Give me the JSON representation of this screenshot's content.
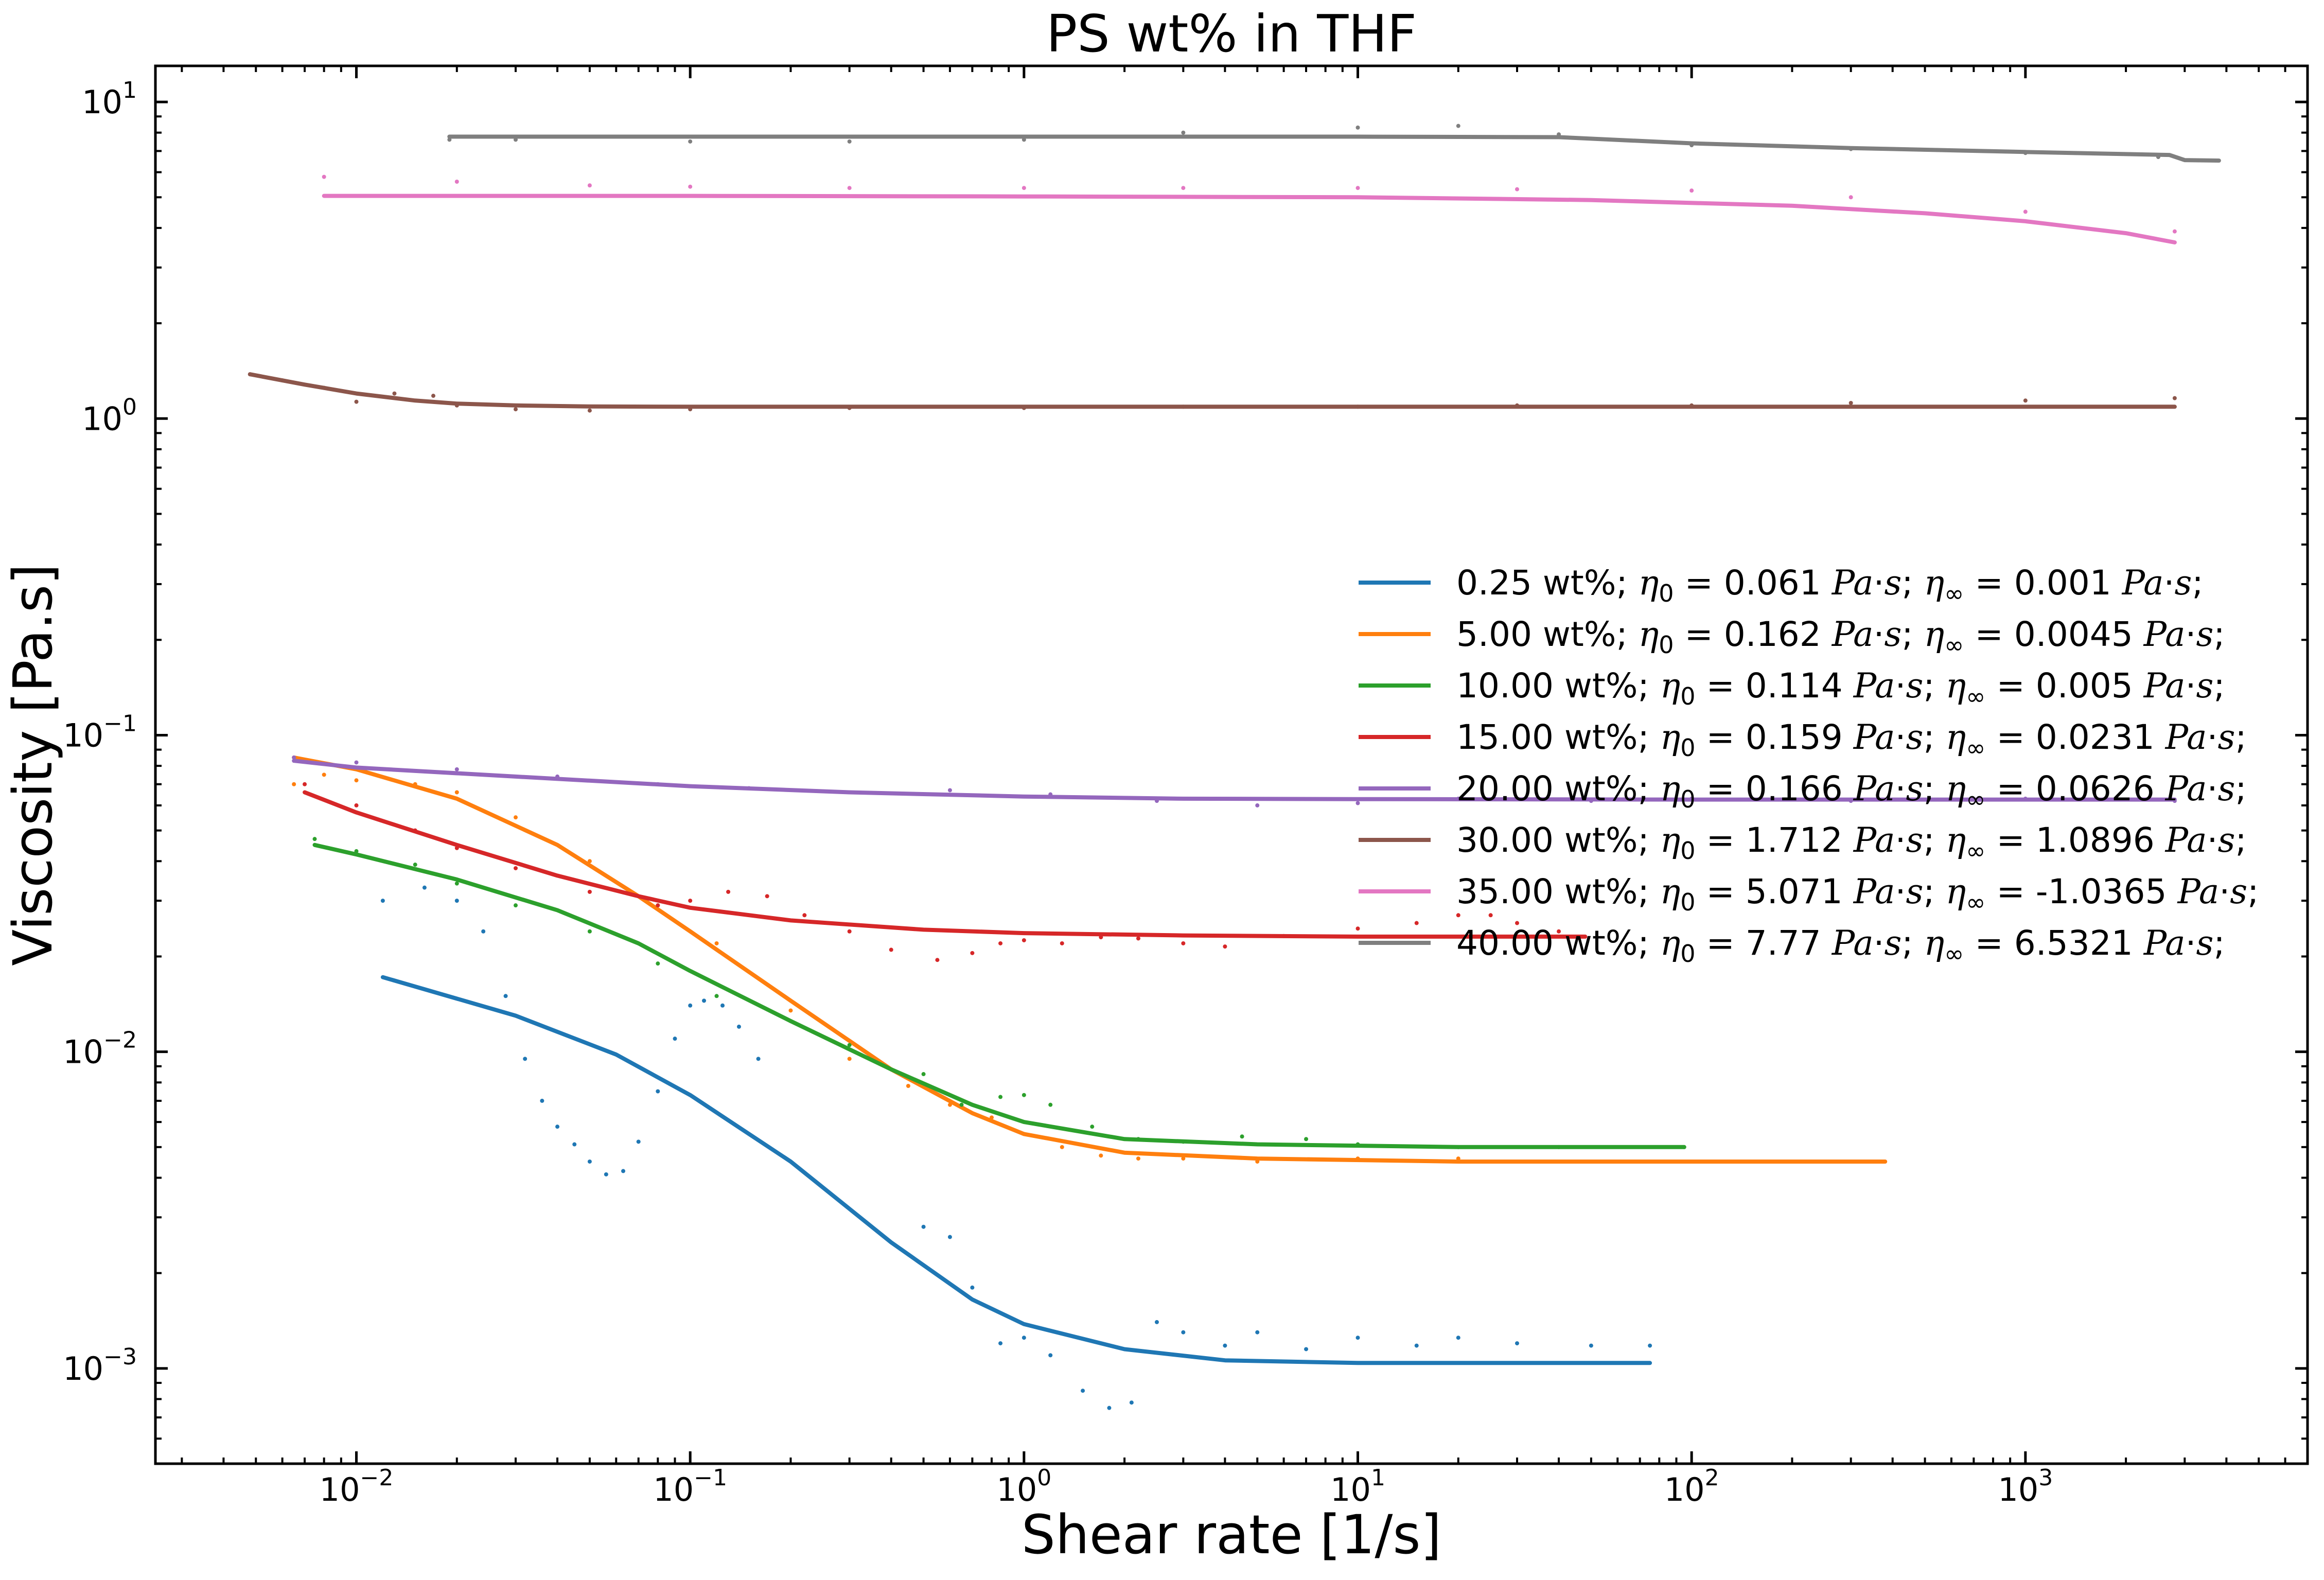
{
  "chart_data": {
    "type": "line",
    "title": "PS wt% in THF",
    "xlabel": "Shear rate [1/s]",
    "ylabel": "Viscosity [Pa.s]",
    "xscale": "log",
    "yscale": "log",
    "xlim": [
      0.0025,
      7000
    ],
    "ylim": [
      0.0005,
      13
    ],
    "x_ticks": [
      {
        "value": 0.01,
        "base": "10",
        "exp": "−2"
      },
      {
        "value": 0.1,
        "base": "10",
        "exp": "−1"
      },
      {
        "value": 1,
        "base": "10",
        "exp": "0"
      },
      {
        "value": 10,
        "base": "10",
        "exp": "1"
      },
      {
        "value": 100,
        "base": "10",
        "exp": "2"
      },
      {
        "value": 1000,
        "base": "10",
        "exp": "3"
      }
    ],
    "y_ticks": [
      {
        "value": 0.001,
        "base": "10",
        "exp": "−3"
      },
      {
        "value": 0.01,
        "base": "10",
        "exp": "−2"
      },
      {
        "value": 0.1,
        "base": "10",
        "exp": "−1"
      },
      {
        "value": 1,
        "base": "10",
        "exp": "0"
      },
      {
        "value": 10,
        "base": "10",
        "exp": "1"
      }
    ],
    "grid": false,
    "legend_position": "center-right",
    "series": [
      {
        "name": "0.25 wt%; η0 = 0.061 Pa·s; η∞ = 0.001 Pa·s;",
        "legend": {
          "conc": "0.25 wt%; ",
          "eta0": "0.061",
          "etainf": "0.001"
        },
        "color": "#1f77b4",
        "fit": {
          "x": [
            0.012,
            0.03,
            0.06,
            0.1,
            0.2,
            0.4,
            0.7,
            1.0,
            2.0,
            4.0,
            10,
            30,
            75
          ],
          "y": [
            0.0172,
            0.013,
            0.0098,
            0.0073,
            0.0045,
            0.0025,
            0.00165,
            0.00138,
            0.00115,
            0.00106,
            0.00104,
            0.00104,
            0.00104
          ]
        },
        "measured": {
          "x": [
            0.012,
            0.016,
            0.02,
            0.024,
            0.028,
            0.032,
            0.036,
            0.04,
            0.045,
            0.05,
            0.056,
            0.063,
            0.07,
            0.08,
            0.09,
            0.1,
            0.11,
            0.125,
            0.14,
            0.16,
            0.5,
            0.6,
            0.7,
            0.85,
            1.0,
            1.2,
            1.5,
            1.8,
            2.1,
            2.5,
            3.0,
            4.0,
            5.0,
            7.0,
            10,
            15,
            20,
            30,
            50,
            75
          ],
          "y": [
            0.03,
            0.033,
            0.03,
            0.024,
            0.015,
            0.0095,
            0.007,
            0.0058,
            0.0051,
            0.0045,
            0.0041,
            0.0042,
            0.0052,
            0.0075,
            0.011,
            0.014,
            0.0145,
            0.014,
            0.012,
            0.0095,
            0.0028,
            0.0026,
            0.0018,
            0.0012,
            0.00125,
            0.0011,
            0.00085,
            0.00075,
            0.00078,
            0.0014,
            0.0013,
            0.00118,
            0.0013,
            0.00115,
            0.00125,
            0.00118,
            0.00125,
            0.0012,
            0.00118,
            0.00118
          ]
        }
      },
      {
        "name": "5.00 wt%; η0 = 0.162 Pa·s; η∞ = 0.0045 Pa·s;",
        "legend": {
          "conc": "5.00 wt%; ",
          "eta0": "0.162",
          "etainf": "0.0045"
        },
        "color": "#ff7f0e",
        "fit": {
          "x": [
            0.0065,
            0.01,
            0.02,
            0.04,
            0.07,
            0.1,
            0.2,
            0.4,
            0.7,
            1.0,
            2.0,
            5.0,
            20,
            100,
            380
          ],
          "y": [
            0.085,
            0.078,
            0.063,
            0.045,
            0.031,
            0.024,
            0.0145,
            0.0088,
            0.0064,
            0.0055,
            0.0048,
            0.0046,
            0.0045,
            0.0045,
            0.0045
          ]
        },
        "measured": {
          "x": [
            0.0065,
            0.008,
            0.01,
            0.015,
            0.02,
            0.03,
            0.05,
            0.08,
            0.12,
            0.2,
            0.3,
            0.45,
            0.6,
            0.8,
            1.0,
            1.3,
            1.7,
            2.2,
            3.0,
            5.0,
            10,
            20,
            40,
            80,
            150
          ],
          "y": [
            0.07,
            0.075,
            0.072,
            0.07,
            0.066,
            0.055,
            0.04,
            0.029,
            0.022,
            0.0135,
            0.0095,
            0.0078,
            0.0068,
            0.0062,
            0.0055,
            0.005,
            0.0047,
            0.0046,
            0.0046,
            0.0045,
            0.0046,
            0.0046,
            0.0045,
            0.0045,
            0.0045
          ]
        }
      },
      {
        "name": "10.00 wt%; η0 = 0.114 Pa·s; η∞ = 0.005 Pa·s;",
        "legend": {
          "conc": "10.00 wt%; ",
          "eta0": "0.114",
          "etainf": "0.005"
        },
        "color": "#2ca02c",
        "fit": {
          "x": [
            0.0075,
            0.01,
            0.02,
            0.04,
            0.07,
            0.1,
            0.2,
            0.4,
            0.7,
            1.0,
            2.0,
            5.0,
            20,
            95
          ],
          "y": [
            0.045,
            0.042,
            0.035,
            0.028,
            0.022,
            0.018,
            0.0125,
            0.0088,
            0.0068,
            0.006,
            0.0053,
            0.0051,
            0.005,
            0.005
          ]
        },
        "measured": {
          "x": [
            0.0075,
            0.01,
            0.015,
            0.02,
            0.03,
            0.05,
            0.08,
            0.12,
            0.2,
            0.3,
            0.5,
            0.65,
            0.85,
            1.0,
            1.2,
            1.6,
            2.2,
            3.0,
            4.5,
            7.0,
            10,
            20,
            40,
            95
          ],
          "y": [
            0.047,
            0.043,
            0.039,
            0.034,
            0.029,
            0.024,
            0.019,
            0.015,
            0.0125,
            0.0105,
            0.0085,
            0.0068,
            0.0072,
            0.0073,
            0.0068,
            0.0058,
            0.0053,
            0.0052,
            0.0054,
            0.0053,
            0.0051,
            0.005,
            0.005,
            0.005
          ]
        }
      },
      {
        "name": "15.00 wt%; η0 = 0.159 Pa·s; η∞ = 0.0231 Pa·s;",
        "legend": {
          "conc": "15.00 wt%; ",
          "eta0": "0.159",
          "etainf": "0.0231"
        },
        "color": "#d62728",
        "fit": {
          "x": [
            0.007,
            0.01,
            0.02,
            0.04,
            0.07,
            0.1,
            0.2,
            0.5,
            1.0,
            3.0,
            10,
            48
          ],
          "y": [
            0.066,
            0.057,
            0.045,
            0.036,
            0.031,
            0.0285,
            0.026,
            0.0243,
            0.0237,
            0.0233,
            0.0231,
            0.0231
          ]
        },
        "measured": {
          "x": [
            0.007,
            0.01,
            0.015,
            0.02,
            0.03,
            0.05,
            0.08,
            0.1,
            0.13,
            0.17,
            0.22,
            0.3,
            0.4,
            0.55,
            0.7,
            0.85,
            1.0,
            1.3,
            1.7,
            2.2,
            3.0,
            4.0,
            6.0,
            10,
            15,
            20,
            25,
            30,
            40
          ],
          "y": [
            0.07,
            0.06,
            0.05,
            0.044,
            0.038,
            0.032,
            0.029,
            0.03,
            0.032,
            0.031,
            0.027,
            0.024,
            0.021,
            0.0195,
            0.0205,
            0.022,
            0.0225,
            0.022,
            0.023,
            0.0228,
            0.022,
            0.0215,
            0.0232,
            0.0245,
            0.0255,
            0.027,
            0.027,
            0.0255,
            0.024
          ]
        }
      },
      {
        "name": "20.00 wt%; η0 = 0.166 Pa·s; η∞ = 0.0626 Pa·s;",
        "legend": {
          "conc": "20.00 wt%; ",
          "eta0": "0.166",
          "etainf": "0.0626"
        },
        "color": "#9467bd",
        "fit": {
          "x": [
            0.0065,
            0.01,
            0.03,
            0.1,
            0.3,
            1.0,
            3.0,
            10,
            100,
            1000,
            2800
          ],
          "y": [
            0.083,
            0.079,
            0.074,
            0.069,
            0.066,
            0.064,
            0.063,
            0.0628,
            0.0626,
            0.0626,
            0.0626
          ]
        },
        "measured": {
          "x": [
            0.0065,
            0.01,
            0.02,
            0.04,
            0.08,
            0.15,
            0.3,
            0.6,
            1.2,
            2.5,
            5.0,
            10,
            20,
            50,
            100,
            300,
            1000,
            2800
          ],
          "y": [
            0.085,
            0.082,
            0.078,
            0.074,
            0.07,
            0.068,
            0.066,
            0.067,
            0.065,
            0.062,
            0.06,
            0.061,
            0.063,
            0.062,
            0.063,
            0.062,
            0.063,
            0.062
          ]
        }
      },
      {
        "name": "30.00 wt%; η0 = 1.712 Pa·s; η∞ = 1.0896 Pa·s;",
        "legend": {
          "conc": "30.00 wt%; ",
          "eta0": "1.712",
          "etainf": "1.0896"
        },
        "color": "#8c564b",
        "fit": {
          "x": [
            0.0048,
            0.007,
            0.01,
            0.015,
            0.02,
            0.03,
            0.05,
            0.1,
            1.0,
            10,
            100,
            1000,
            2800
          ],
          "y": [
            1.38,
            1.28,
            1.2,
            1.14,
            1.115,
            1.1,
            1.092,
            1.09,
            1.09,
            1.09,
            1.09,
            1.09,
            1.09
          ]
        },
        "measured": {
          "x": [
            0.0048,
            0.006,
            0.008,
            0.01,
            0.013,
            0.017,
            0.02,
            0.03,
            0.05,
            0.1,
            0.3,
            1.0,
            3.0,
            10,
            30,
            100,
            300,
            1000,
            2800
          ],
          "y": [
            1.38,
            1.32,
            1.25,
            1.13,
            1.2,
            1.18,
            1.1,
            1.07,
            1.06,
            1.07,
            1.08,
            1.08,
            1.09,
            1.09,
            1.1,
            1.1,
            1.12,
            1.14,
            1.16
          ]
        }
      },
      {
        "name": "35.00 wt%; η0 = 5.071 Pa·s; η∞ = -1.0365 Pa·s;",
        "legend": {
          "conc": "35.00 wt%; ",
          "eta0": "5.071",
          "etainf": "-1.0365"
        },
        "color": "#e377c2",
        "fit": {
          "x": [
            0.008,
            0.1,
            1.0,
            10,
            50,
            200,
            500,
            1000,
            2000,
            2800
          ],
          "y": [
            5.05,
            5.05,
            5.03,
            5.0,
            4.9,
            4.7,
            4.45,
            4.2,
            3.85,
            3.6
          ]
        },
        "measured": {
          "x": [
            0.008,
            0.02,
            0.05,
            0.1,
            0.3,
            1.0,
            3.0,
            10,
            30,
            100,
            300,
            1000,
            2800
          ],
          "y": [
            5.8,
            5.6,
            5.45,
            5.4,
            5.35,
            5.35,
            5.35,
            5.35,
            5.3,
            5.25,
            5.0,
            4.5,
            3.9
          ]
        }
      },
      {
        "name": "40.00 wt%; η0 = 7.77 Pa·s; η∞ = 6.5321 Pa·s;",
        "legend": {
          "conc": "40.00 wt%; ",
          "eta0": "7.77",
          "etainf": "6.5321"
        },
        "color": "#7f7f7f",
        "fit": {
          "x": [
            0.019,
            0.1,
            1.0,
            10,
            40,
            100,
            300,
            1000,
            2700,
            3000,
            3800
          ],
          "y": [
            7.77,
            7.77,
            7.77,
            7.77,
            7.74,
            7.4,
            7.15,
            6.95,
            6.8,
            6.55,
            6.53
          ]
        },
        "measured": {
          "x": [
            0.019,
            0.03,
            0.1,
            0.3,
            1.0,
            3.0,
            10,
            20,
            40,
            100,
            300,
            1000,
            2500
          ],
          "y": [
            7.6,
            7.6,
            7.5,
            7.5,
            7.6,
            8.0,
            8.3,
            8.4,
            7.9,
            7.3,
            7.1,
            6.9,
            6.7
          ]
        }
      }
    ]
  }
}
